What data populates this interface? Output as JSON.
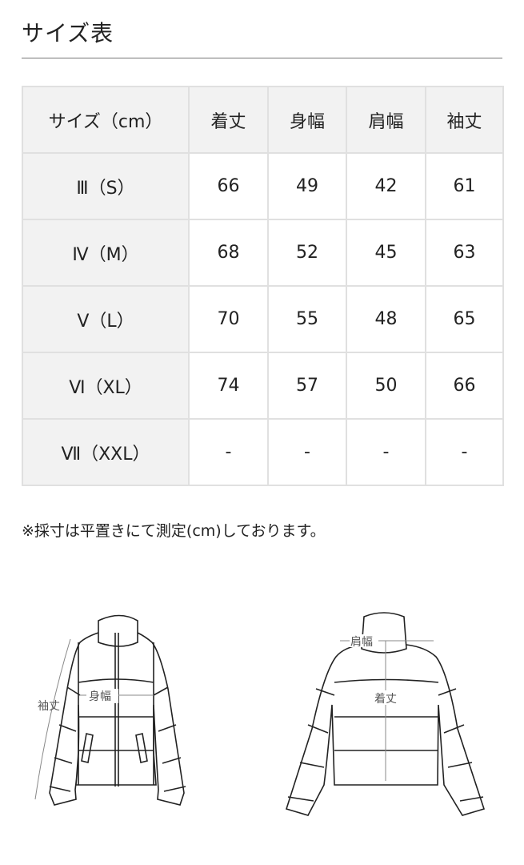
{
  "title": "サイズ表",
  "table": {
    "headers": [
      "サイズ（cm）",
      "着丈",
      "身幅",
      "肩幅",
      "袖丈"
    ],
    "rows": [
      [
        "Ⅲ（S）",
        "66",
        "49",
        "42",
        "61"
      ],
      [
        "Ⅳ（M）",
        "68",
        "52",
        "45",
        "63"
      ],
      [
        "Ⅴ（L）",
        "70",
        "55",
        "48",
        "65"
      ],
      [
        "Ⅵ（XL）",
        "74",
        "57",
        "50",
        "66"
      ],
      [
        "Ⅶ（XXL）",
        "-",
        "-",
        "-",
        "-"
      ]
    ]
  },
  "note": "※採寸は平置きにて測定(cm)しております。",
  "diagram": {
    "sleeve": "袖丈",
    "width": "身幅",
    "shoulder": "肩幅",
    "length": "着丈"
  }
}
